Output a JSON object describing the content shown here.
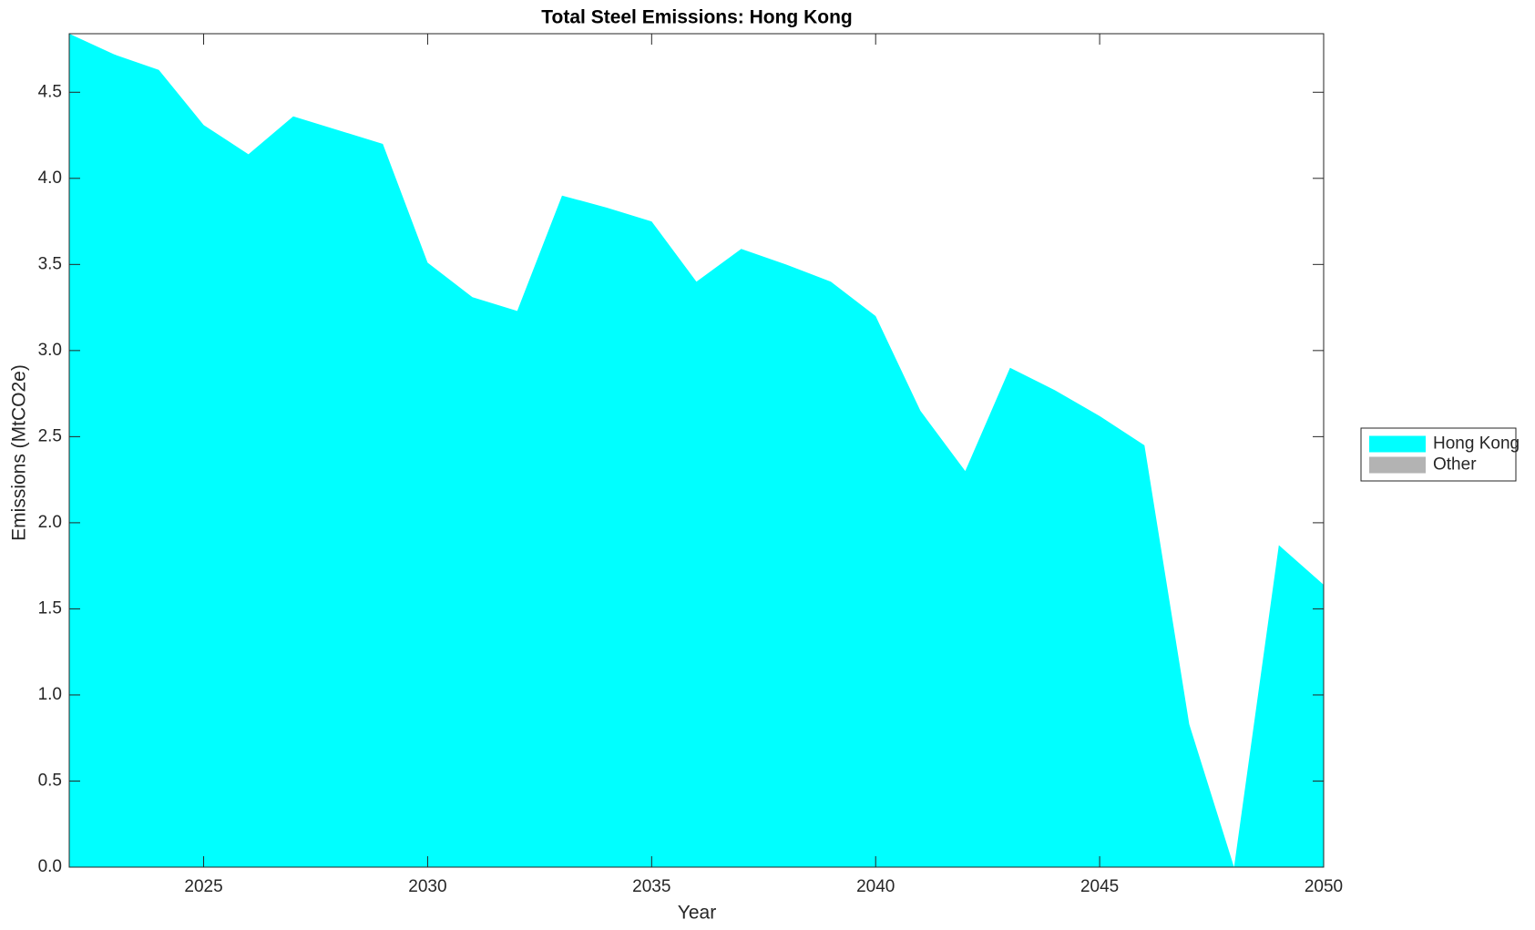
{
  "chart_data": {
    "type": "area",
    "title": "Total Steel Emissions: Hong Kong",
    "x_label": "Year",
    "y_label": "Emissions (MtCO2e)",
    "x": [
      2022,
      2023,
      2024,
      2025,
      2026,
      2027,
      2028,
      2029,
      2030,
      2031,
      2032,
      2033,
      2034,
      2035,
      2036,
      2037,
      2038,
      2039,
      2040,
      2041,
      2042,
      2043,
      2044,
      2045,
      2046,
      2047,
      2048,
      2049,
      2050
    ],
    "series": [
      {
        "name": "Hong Kong",
        "color": "#00ffff",
        "values": [
          4.84,
          4.72,
          4.63,
          4.31,
          4.14,
          4.36,
          4.28,
          4.2,
          3.51,
          3.31,
          3.23,
          3.9,
          3.83,
          3.75,
          3.4,
          3.59,
          3.5,
          3.4,
          3.2,
          2.65,
          2.3,
          2.9,
          2.77,
          2.62,
          2.45,
          0.83,
          0.0,
          1.87,
          1.64
        ]
      },
      {
        "name": "Other",
        "color": "#b3b3b3",
        "values": [
          0,
          0,
          0,
          0,
          0,
          0,
          0,
          0,
          0,
          0,
          0,
          0,
          0,
          0,
          0,
          0,
          0,
          0,
          0,
          0,
          0,
          0,
          0,
          0,
          0,
          0,
          0,
          0,
          0
        ]
      }
    ],
    "stacked": true,
    "xlim": [
      2022,
      2050
    ],
    "ylim": [
      0,
      4.84
    ],
    "xticks": [
      2025,
      2030,
      2035,
      2040,
      2045,
      2050
    ],
    "yticks": [
      {
        "value": 0,
        "label": "0.0"
      },
      {
        "value": 0.5,
        "label": "0.5"
      },
      {
        "value": 1,
        "label": "1.0"
      },
      1.5,
      {
        "value": 2,
        "label": "2.0"
      },
      2.5,
      {
        "value": 3,
        "label": "3.0"
      },
      3.5,
      {
        "value": 4,
        "label": "4.0"
      },
      4.5
    ],
    "legend": "right"
  }
}
